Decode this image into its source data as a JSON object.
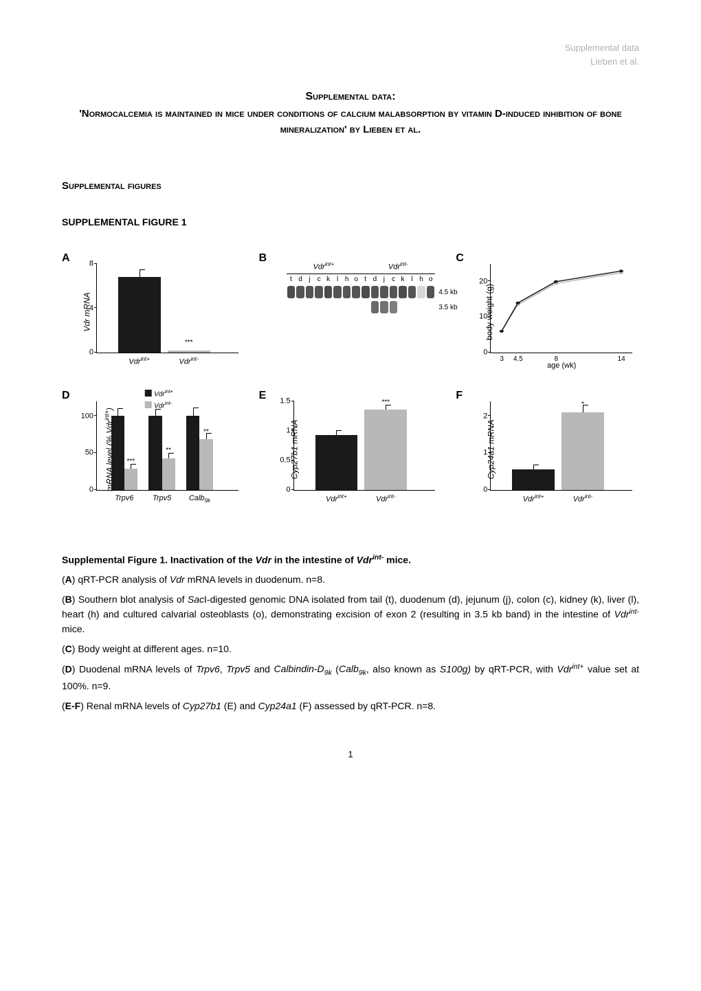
{
  "header": {
    "line1": "Supplemental data",
    "line2": "Lieben et al."
  },
  "title": {
    "line1": "Supplemental data:",
    "line2": "'Normocalcemia is maintained in mice under conditions of calcium malabsorption by vitamin D-induced inhibition of bone mineralization' by Lieben et al."
  },
  "section_heading": "Supplemental figures",
  "subsection_heading": "SUPPLEMENTAL FIGURE 1",
  "colors": {
    "dark_bar": "#1a1a1a",
    "light_bar": "#b8b8b8",
    "axis": "#000000",
    "header_grey": "#b0b0b0",
    "band_dark": "#2a2a2a",
    "band_mid": "#6a6a6a",
    "band_light": "#c5c5c5"
  },
  "panelA": {
    "label": "A",
    "y_label": "Vdr mRNA",
    "y_ticks": [
      0,
      4,
      8
    ],
    "bars": [
      {
        "label": "Vdrᶦⁿᵗ⁺",
        "value": 6.8,
        "color": "#1a1a1a",
        "error": 0.6
      },
      {
        "label": "Vdrᶦⁿᵗ⁻",
        "value": 0.15,
        "color": "#b8b8b8",
        "sig": "***"
      }
    ],
    "ylim": 8
  },
  "panelB": {
    "label": "B",
    "groups": [
      "Vdrᶦⁿᵗ⁺",
      "Vdrᶦⁿᵗ⁻"
    ],
    "lanes": [
      "t",
      "d",
      "j",
      "c",
      "k",
      "l",
      "h",
      "o",
      "t",
      "d",
      "j",
      "c",
      "k",
      "l",
      "h",
      "o"
    ],
    "row1_size": "4.5 kb",
    "row2_size": "3.5 kb",
    "row1_intensity": [
      0.9,
      0.85,
      0.85,
      0.85,
      0.9,
      0.85,
      0.85,
      0.85,
      0.9,
      0.85,
      0.85,
      0.85,
      0.9,
      0.85,
      0.2,
      0.85
    ],
    "row2_intensity": [
      0,
      0,
      0,
      0,
      0,
      0,
      0,
      0,
      0,
      0.75,
      0.7,
      0.65,
      0,
      0,
      0,
      0
    ]
  },
  "panelC": {
    "label": "C",
    "y_label": "body weight (g)",
    "y_ticks": [
      0,
      10,
      20
    ],
    "x_ticks": [
      3,
      4.5,
      8,
      14
    ],
    "x_label": "age (wk)",
    "series1": {
      "color": "#1a1a1a",
      "points": [
        [
          3,
          6
        ],
        [
          4.5,
          14
        ],
        [
          8,
          20
        ],
        [
          14,
          23
        ]
      ]
    },
    "series2": {
      "color": "#b8b8b8",
      "points": [
        [
          3,
          6
        ],
        [
          4.5,
          13.5
        ],
        [
          8,
          19.5
        ],
        [
          14,
          22.5
        ]
      ]
    },
    "ylim": 25,
    "xlim": [
      2,
      15
    ]
  },
  "panelD": {
    "label": "D",
    "y_label": "mRNA level (% Vdrᶦⁿᵗ⁺)",
    "y_ticks": [
      0,
      50,
      100
    ],
    "legend": [
      {
        "label": "Vdrᶦⁿᵗ⁺",
        "color": "#1a1a1a"
      },
      {
        "label": "Vdrᶦⁿᵗ⁻",
        "color": "#b8b8b8"
      }
    ],
    "groups": [
      {
        "label": "Trpv6",
        "bars": [
          {
            "value": 100,
            "color": "#1a1a1a",
            "error": 9
          },
          {
            "value": 28,
            "color": "#b8b8b8",
            "error": 6,
            "sig": "***"
          }
        ]
      },
      {
        "label": "Trpv5",
        "bars": [
          {
            "value": 100,
            "color": "#1a1a1a",
            "error": 8
          },
          {
            "value": 42,
            "color": "#b8b8b8",
            "error": 7,
            "sig": "**"
          }
        ]
      },
      {
        "label": "Calb₉ₖ",
        "bars": [
          {
            "value": 100,
            "color": "#1a1a1a",
            "error": 10
          },
          {
            "value": 68,
            "color": "#b8b8b8",
            "error": 8,
            "sig": "**"
          }
        ]
      }
    ],
    "ylim": 120
  },
  "panelE": {
    "label": "E",
    "y_label": "Cyp27b1 mRNA",
    "y_ticks": [
      0,
      0.5,
      1.0,
      1.5
    ],
    "bars": [
      {
        "label": "Vdrᶦⁿᵗ⁺",
        "value": 0.92,
        "color": "#1a1a1a",
        "error": 0.08
      },
      {
        "label": "Vdrᶦⁿᵗ⁻",
        "value": 1.35,
        "color": "#b8b8b8",
        "error": 0.08,
        "sig": "***"
      }
    ],
    "ylim": 1.5
  },
  "panelF": {
    "label": "F",
    "y_label": "Cyp24a1 mRNA",
    "y_ticks": [
      0,
      1,
      2
    ],
    "bars": [
      {
        "label": "Vdrᶦⁿᵗ⁺",
        "value": 0.55,
        "color": "#1a1a1a",
        "error": 0.12
      },
      {
        "label": "Vdrᶦⁿᵗ⁻",
        "value": 2.1,
        "color": "#b8b8b8",
        "error": 0.18,
        "sig": "*"
      }
    ],
    "ylim": 2.4
  },
  "caption": {
    "title": "Supplemental Figure 1. Inactivation of the Vdr in the intestine of Vdrᶦⁿᵗ⁻ mice.",
    "A": "(A) qRT-PCR analysis of Vdr mRNA levels in duodenum. n=8.",
    "B": "(B) Southern blot analysis of SacI-digested genomic DNA isolated from tail (t), duodenum (d), jejunum (j), colon (c), kidney (k), liver (l), heart (h) and cultured calvarial osteoblasts (o), demonstrating excision of exon 2 (resulting in 3.5 kb band) in the intestine of Vdrᶦⁿᵗ⁻ mice.",
    "C": "(C) Body weight at different ages. n=10.",
    "D": "(D) Duodenal mRNA levels of Trpv6, Trpv5 and Calbindin-D₉ₖ (Calb₉ₖ, also known as S100g) by qRT-PCR, with Vdrᶦⁿᵗ⁺ value set at 100%. n=9.",
    "EF": "(E-F) Renal mRNA levels of Cyp27b1 (E) and Cyp24a1 (F) assessed by qRT-PCR. n=8."
  },
  "page_number": "1"
}
